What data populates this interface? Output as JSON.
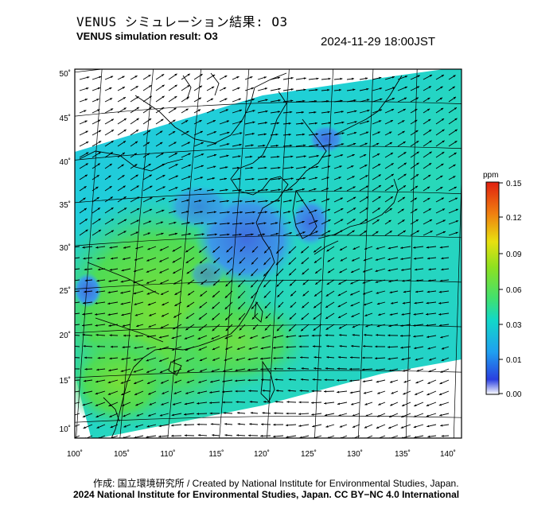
{
  "header": {
    "title_jp": "VENUS シミュレーション結果: O3",
    "title_en": "VENUS simulation result: O3",
    "timestamp": "2024-11-29 18:00JST"
  },
  "map": {
    "lat_ticks": [
      "50˚",
      "45˚",
      "40˚",
      "35˚",
      "30˚",
      "25˚",
      "20˚",
      "15˚",
      "10˚"
    ],
    "lon_ticks": [
      "100˚",
      "105˚",
      "110˚",
      "115˚",
      "120˚",
      "125˚",
      "130˚",
      "135˚",
      "140˚"
    ],
    "colors": {
      "ocean_mid": "#1fd0d6",
      "low_o3": "#4a78e0",
      "high_o3": "#5ee04a",
      "land_line": "#000000"
    }
  },
  "colorbar": {
    "unit": "ppm",
    "ticks": [
      "0.15",
      "0.12",
      "0.09",
      "0.06",
      "0.03",
      "0.01",
      "0.00"
    ]
  },
  "footer": {
    "credit_line": "作成: 国立環境研究所 / Created by National Institute for Environmental Studies, Japan.",
    "license_line": "2024 National Institute for Environmental Studies, Japan. CC BY−NC 4.0 International"
  }
}
